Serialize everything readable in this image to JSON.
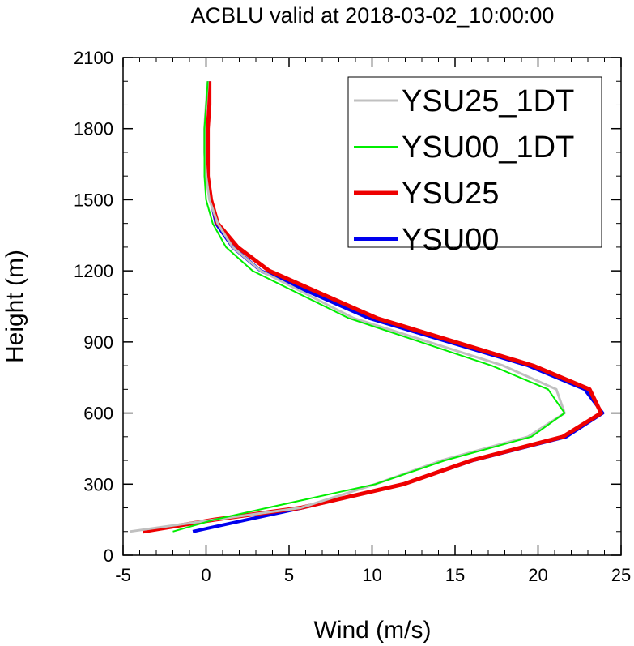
{
  "chart_data": {
    "type": "line",
    "title": "ACBLU valid at 2018-03-02_10:00:00",
    "xlabel": "Wind (m/s)",
    "ylabel": "Height (m)",
    "xlim": [
      -5,
      25
    ],
    "ylim": [
      0,
      2100
    ],
    "xticks": [
      -5,
      0,
      5,
      10,
      15,
      20,
      25
    ],
    "yticks": [
      0,
      300,
      600,
      900,
      1200,
      1500,
      1800,
      2100
    ],
    "xtick_labels": [
      "-5",
      "0",
      "5",
      "10",
      "15",
      "20",
      "25"
    ],
    "ytick_labels": [
      "0",
      "300",
      "600",
      "900",
      "1200",
      "1500",
      "1800",
      "2100"
    ],
    "grid": false,
    "legend_position": "top-right",
    "series": [
      {
        "name": "YSU25_1DT",
        "color": "#c0c0c0",
        "x": [
          -4.6,
          0.5,
          5.7,
          10.2,
          14.2,
          19.4,
          21.6,
          21.1,
          17.9,
          8.9,
          3.3,
          1.6,
          0.7,
          0.2,
          0.0,
          -0.1,
          -0.1,
          0.0,
          0.1
        ],
        "y": [
          100,
          150,
          200,
          300,
          400,
          500,
          600,
          700,
          800,
          1000,
          1200,
          1300,
          1400,
          1500,
          1600,
          1700,
          1800,
          1900,
          2000
        ]
      },
      {
        "name": "YSU00_1DT",
        "color": "#00ee00",
        "x": [
          -2.0,
          0.5,
          3.7,
          10.2,
          14.4,
          19.6,
          21.6,
          20.6,
          17.2,
          8.6,
          2.8,
          1.2,
          0.4,
          0.0,
          -0.1,
          -0.1,
          -0.1,
          0.0,
          0.1
        ],
        "y": [
          100,
          150,
          200,
          300,
          400,
          500,
          600,
          700,
          800,
          1000,
          1200,
          1300,
          1400,
          1500,
          1600,
          1700,
          1800,
          1900,
          2000
        ]
      },
      {
        "name": "YSU25",
        "color": "#ee0000",
        "x": [
          -3.8,
          0.5,
          5.7,
          11.9,
          16.0,
          21.5,
          23.8,
          23.1,
          19.7,
          10.3,
          3.8,
          1.9,
          0.7,
          0.3,
          0.1,
          0.1,
          0.1,
          0.2,
          0.2
        ],
        "y": [
          100,
          150,
          200,
          300,
          400,
          500,
          600,
          700,
          800,
          1000,
          1200,
          1300,
          1400,
          1500,
          1600,
          1700,
          1800,
          1900,
          2000
        ]
      },
      {
        "name": "YSU00",
        "color": "#0000ee",
        "x": [
          -0.8,
          2.5,
          5.8,
          11.9,
          16.1,
          21.7,
          23.9,
          22.8,
          19.4,
          9.8,
          3.3,
          1.6,
          0.6,
          0.3,
          0.1,
          0.1,
          0.1,
          0.2,
          0.2
        ],
        "y": [
          100,
          150,
          200,
          300,
          400,
          500,
          600,
          700,
          800,
          1000,
          1200,
          1300,
          1400,
          1500,
          1600,
          1700,
          1800,
          1900,
          2000
        ]
      }
    ]
  }
}
